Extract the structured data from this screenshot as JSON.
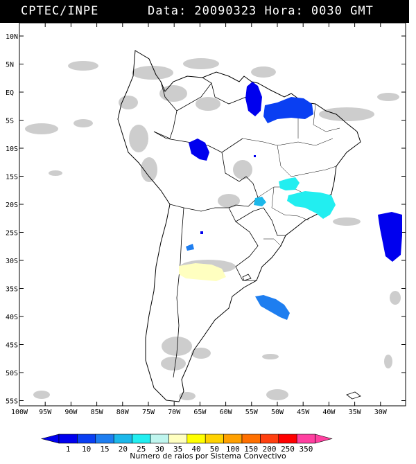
{
  "header": {
    "left": "CPTEC/INPE",
    "right": "Data: 20090323 Hora: 0030 GMT"
  },
  "lat_labels": [
    "10N",
    "5N",
    "EQ",
    "5S",
    "10S",
    "15S",
    "20S",
    "25S",
    "30S",
    "35S",
    "40S",
    "45S",
    "50S",
    "55S"
  ],
  "lon_labels": [
    "100W",
    "95W",
    "90W",
    "85W",
    "80W",
    "75W",
    "70W",
    "65W",
    "60W",
    "55W",
    "50W",
    "45W",
    "40W",
    "35W",
    "30W"
  ],
  "legend": {
    "title": "Numero de raios por Sistema Convectivo",
    "labels": [
      "1",
      "10",
      "15",
      "20",
      "25",
      "30",
      "35",
      "40",
      "50",
      "100",
      "150",
      "200",
      "250",
      "350"
    ],
    "colors": [
      "#0000ee",
      "#0a3ff2",
      "#1e7ef0",
      "#1cb8ea",
      "#22eef0",
      "#bff5ee",
      "#ffffc0",
      "#ffff00",
      "#ffd200",
      "#ffa000",
      "#ff7000",
      "#ff4010",
      "#ff0000",
      "#ff40a0"
    ]
  },
  "storm_colors": {
    "dark_blue": "#0000ee",
    "mid_blue": "#0a3ff2",
    "light_blue": "#1e7ef0",
    "cyan": "#22eef0",
    "pale_yellow": "#ffffc0",
    "cloud_gray": "#c8c8c8"
  }
}
